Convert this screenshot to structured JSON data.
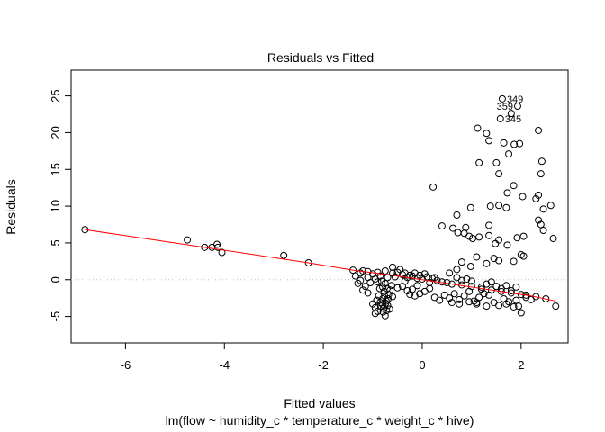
{
  "chart_data": {
    "type": "scatter",
    "title": "Residuals vs Fitted",
    "xlabel": "Fitted values",
    "subtitle": "lm(flow ~ humidity_c * temperature_c * weight_c * hive)",
    "ylabel": "Residuals",
    "xlim": [
      -7.1,
      2.95
    ],
    "ylim": [
      -8.6,
      28.5
    ],
    "xticks": [
      -6,
      -4,
      -2,
      0,
      2
    ],
    "yticks": [
      -5,
      0,
      5,
      10,
      15,
      20,
      25
    ],
    "grid": false,
    "reference_line": {
      "y": 0,
      "style": "dotted",
      "color": "#bebebe"
    },
    "point_color": "#000000",
    "smooth_color": "#ff0000",
    "smooth_line": [
      [
        -6.82,
        6.8
      ],
      [
        -4.0,
        4.0
      ],
      [
        -2.3,
        2.3
      ],
      [
        -1.4,
        1.3
      ],
      [
        -0.6,
        0.6
      ],
      [
        0.0,
        0.0
      ],
      [
        0.6,
        -0.6
      ],
      [
        1.2,
        -1.2
      ],
      [
        1.8,
        -1.8
      ],
      [
        2.2,
        -2.2
      ],
      [
        2.7,
        -2.9
      ]
    ],
    "labeled_points": [
      {
        "label": "349",
        "x": 1.62,
        "y": 24.6
      },
      {
        "label": "359",
        "x": 1.93,
        "y": 23.6
      },
      {
        "label": "345",
        "x": 1.58,
        "y": 21.9
      }
    ],
    "points": [
      [
        -6.82,
        6.8
      ],
      [
        -4.75,
        5.4
      ],
      [
        -4.4,
        4.4
      ],
      [
        -4.25,
        4.4
      ],
      [
        -4.15,
        4.8
      ],
      [
        -4.13,
        4.4
      ],
      [
        -4.05,
        3.7
      ],
      [
        -2.8,
        3.3
      ],
      [
        -2.3,
        2.3
      ],
      [
        0.22,
        12.6
      ],
      [
        1.12,
        20.6
      ],
      [
        1.3,
        19.9
      ],
      [
        1.35,
        18.9
      ],
      [
        1.5,
        15.9
      ],
      [
        1.55,
        14.4
      ],
      [
        1.58,
        21.9
      ],
      [
        1.62,
        24.6
      ],
      [
        1.65,
        18.6
      ],
      [
        1.75,
        17.1
      ],
      [
        1.72,
        11.8
      ],
      [
        1.8,
        22.6
      ],
      [
        1.86,
        18.4
      ],
      [
        1.93,
        23.6
      ],
      [
        1.97,
        18.5
      ],
      [
        2.35,
        20.3
      ],
      [
        2.42,
        16.1
      ],
      [
        2.4,
        14.4
      ],
      [
        1.15,
        15.9
      ],
      [
        1.7,
        9.8
      ],
      [
        1.85,
        12.8
      ],
      [
        2.03,
        11.3
      ],
      [
        2.3,
        11.0
      ],
      [
        2.35,
        11.5
      ],
      [
        2.6,
        10.1
      ],
      [
        2.45,
        9.6
      ],
      [
        1.38,
        10.0
      ],
      [
        1.55,
        10.1
      ],
      [
        0.98,
        9.8
      ],
      [
        0.7,
        8.8
      ],
      [
        0.88,
        7.1
      ],
      [
        0.62,
        7.0
      ],
      [
        0.72,
        6.4
      ],
      [
        0.4,
        7.3
      ],
      [
        0.85,
        6.3
      ],
      [
        0.95,
        5.9
      ],
      [
        1.02,
        5.6
      ],
      [
        1.15,
        5.8
      ],
      [
        1.35,
        7.4
      ],
      [
        1.35,
        6.0
      ],
      [
        1.48,
        4.9
      ],
      [
        1.55,
        5.4
      ],
      [
        1.72,
        4.7
      ],
      [
        1.92,
        5.7
      ],
      [
        2.05,
        5.9
      ],
      [
        2.35,
        8.1
      ],
      [
        2.4,
        7.5
      ],
      [
        2.45,
        6.7
      ],
      [
        2.65,
        5.6
      ],
      [
        2.0,
        3.4
      ],
      [
        2.05,
        3.2
      ],
      [
        1.45,
        2.9
      ],
      [
        1.1,
        3.1
      ],
      [
        0.8,
        2.4
      ],
      [
        1.3,
        2.2
      ],
      [
        1.55,
        2.6
      ],
      [
        1.85,
        2.5
      ],
      [
        0.98,
        1.8
      ],
      [
        0.7,
        1.4
      ],
      [
        0.55,
        0.9
      ],
      [
        -1.4,
        1.3
      ],
      [
        -1.35,
        0.5
      ],
      [
        -1.25,
        0.9
      ],
      [
        -1.2,
        1.2
      ],
      [
        -1.1,
        1.1
      ],
      [
        -1.0,
        0.8
      ],
      [
        -0.9,
        1.0
      ],
      [
        -0.85,
        0.5
      ],
      [
        -0.75,
        1.2
      ],
      [
        -0.6,
        1.7
      ],
      [
        -0.5,
        1.0
      ],
      [
        -0.4,
        0.7
      ],
      [
        -0.3,
        0.3
      ],
      [
        -0.2,
        0.5
      ],
      [
        -0.1,
        0.2
      ],
      [
        0.0,
        0.1
      ],
      [
        0.1,
        0.4
      ],
      [
        0.2,
        0.2
      ],
      [
        0.3,
        -0.1
      ],
      [
        0.4,
        -0.3
      ],
      [
        0.5,
        -0.4
      ],
      [
        0.6,
        -0.6
      ],
      [
        0.8,
        -0.7
      ],
      [
        1.0,
        -0.9
      ],
      [
        1.2,
        -1.0
      ],
      [
        1.4,
        -1.4
      ],
      [
        1.6,
        -1.6
      ],
      [
        1.8,
        -1.8
      ],
      [
        2.0,
        -2.0
      ],
      [
        2.1,
        -2.1
      ],
      [
        -1.3,
        -0.5
      ],
      [
        -1.2,
        -1.4
      ],
      [
        -1.1,
        -1.8
      ],
      [
        -1.05,
        -0.4
      ],
      [
        -1.0,
        -3.3
      ],
      [
        -0.95,
        -3.8
      ],
      [
        -0.9,
        -4.3
      ],
      [
        -0.95,
        -4.6
      ],
      [
        -0.85,
        -3.1
      ],
      [
        -0.8,
        -2.6
      ],
      [
        -0.78,
        -3.9
      ],
      [
        -0.75,
        -4.9
      ],
      [
        -0.72,
        -4.2
      ],
      [
        -0.7,
        -3.5
      ],
      [
        -0.68,
        -2.0
      ],
      [
        -0.65,
        -1.4
      ],
      [
        -0.62,
        -0.8
      ],
      [
        -0.6,
        -2.3
      ],
      [
        -0.8,
        -1.0
      ],
      [
        -0.82,
        -0.2
      ],
      [
        -0.7,
        0.3
      ],
      [
        -0.75,
        -0.5
      ],
      [
        -0.77,
        -1.6
      ],
      [
        -0.73,
        -2.9
      ],
      [
        -0.79,
        -4.4
      ],
      [
        -0.5,
        -1.1
      ],
      [
        -0.4,
        -0.9
      ],
      [
        -0.3,
        -1.5
      ],
      [
        -0.2,
        -1.3
      ],
      [
        -0.1,
        -0.8
      ],
      [
        -0.35,
        -0.2
      ],
      [
        -0.25,
        -2.0
      ],
      [
        -0.15,
        -2.2
      ],
      [
        -0.05,
        -1.9
      ],
      [
        0.05,
        -1.6
      ],
      [
        0.15,
        -1.2
      ],
      [
        0.25,
        -2.4
      ],
      [
        0.35,
        -2.8
      ],
      [
        0.45,
        -2.1
      ],
      [
        0.55,
        -2.5
      ],
      [
        0.65,
        -1.9
      ],
      [
        0.75,
        -2.7
      ],
      [
        0.85,
        -2.2
      ],
      [
        0.95,
        -1.6
      ],
      [
        1.05,
        -2.9
      ],
      [
        1.1,
        -3.3
      ],
      [
        1.15,
        -2.4
      ],
      [
        1.25,
        -1.9
      ],
      [
        1.35,
        -2.1
      ],
      [
        1.45,
        -3.1
      ],
      [
        1.55,
        -3.5
      ],
      [
        1.65,
        -2.6
      ],
      [
        1.75,
        -3.0
      ],
      [
        1.85,
        -3.7
      ],
      [
        1.95,
        -3.6
      ],
      [
        2.0,
        -4.5
      ],
      [
        2.1,
        -2.4
      ],
      [
        1.2,
        -1.3
      ],
      [
        1.3,
        -0.6
      ],
      [
        1.4,
        -0.3
      ],
      [
        1.5,
        -0.9
      ],
      [
        1.6,
        -1.2
      ],
      [
        1.7,
        -0.8
      ],
      [
        1.8,
        -1.5
      ],
      [
        1.9,
        -1.0
      ],
      [
        1.0,
        -0.2
      ],
      [
        0.9,
        0.1
      ],
      [
        0.8,
        -0.1
      ],
      [
        0.7,
        0.3
      ],
      [
        2.3,
        -2.3
      ],
      [
        2.5,
        -2.6
      ],
      [
        2.7,
        -3.6
      ],
      [
        2.2,
        -2.7
      ],
      [
        1.9,
        -2.8
      ],
      [
        1.7,
        -3.3
      ],
      [
        1.3,
        -3.6
      ],
      [
        1.1,
        -3.1
      ],
      [
        0.95,
        -3.0
      ],
      [
        0.75,
        -3.3
      ],
      [
        0.6,
        -3.1
      ],
      [
        -1.1,
        0.3
      ],
      [
        -0.95,
        0.1
      ],
      [
        -0.9,
        -0.3
      ],
      [
        -1.15,
        -0.9
      ],
      [
        -1.25,
        -0.1
      ],
      [
        -0.6,
        0.9
      ],
      [
        -0.45,
        1.4
      ],
      [
        -0.55,
        0.4
      ],
      [
        -0.35,
        0.9
      ],
      [
        -0.25,
        0.6
      ],
      [
        -0.15,
        0.9
      ],
      [
        -0.05,
        0.6
      ],
      [
        0.05,
        0.8
      ],
      [
        0.15,
        -0.4
      ],
      [
        0.25,
        0.3
      ],
      [
        -0.88,
        -2.2
      ],
      [
        -0.86,
        -1.2
      ],
      [
        -0.84,
        -3.6
      ],
      [
        -0.74,
        -3.2
      ],
      [
        -0.66,
        -4.0
      ],
      [
        -0.71,
        -1.2
      ],
      [
        -0.69,
        -2.6
      ],
      [
        -0.76,
        -2.2
      ],
      [
        -0.8,
        -3.4
      ],
      [
        -0.92,
        -2.8
      ]
    ]
  }
}
